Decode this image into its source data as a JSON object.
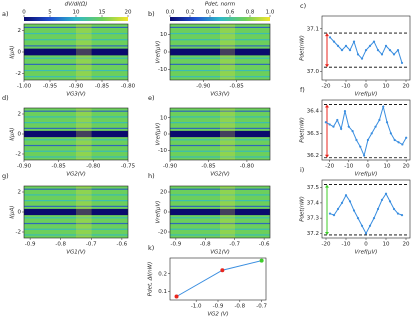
{
  "chart_data": [
    {
      "type": "heatmap",
      "label": "a)",
      "xlabel": "VG3(V)",
      "ylabel": "I(μA)",
      "xlim": [
        -1.0,
        -0.8
      ],
      "xticks": [
        {
          "value": -1.0,
          "label": "-1.00"
        },
        -0.95,
        {
          "value": -0.9,
          "label": "-0.90"
        },
        -0.85,
        {
          "value": -0.8,
          "label": "-0.80"
        }
      ],
      "ylim": [
        -2.6,
        2.6
      ],
      "yticks": [
        -2,
        0,
        2
      ],
      "cbar": {
        "label": "dV/dI(Ω)",
        "lim": [
          0,
          20
        ],
        "ticks": [
          0,
          5,
          10,
          15,
          20
        ]
      },
      "colormap": [
        "#0a0a6e",
        "#1f4fd0",
        "#2fb8c8",
        "#6ccf5c",
        "#f2e52a"
      ]
    },
    {
      "type": "heatmap",
      "label": "b)",
      "xlabel": "VG3(V)",
      "ylabel": "Vref(μV)",
      "xlim": [
        -0.95,
        -0.8
      ],
      "xticks": [
        {
          "value": -0.9,
          "label": "-0.90"
        },
        -0.85
      ],
      "ylim": [
        -16,
        16
      ],
      "yticks": [
        -10,
        0,
        10
      ],
      "cbar": {
        "label": "Pdet, norm",
        "lim": [
          0,
          1
        ],
        "ticks": [
          {
            "value": 0,
            "label": "0.0"
          },
          0.2,
          0.4,
          0.6,
          0.8,
          {
            "value": 1,
            "label": "1.0"
          }
        ]
      },
      "colormap": [
        "#0a0a6e",
        "#1f4fd0",
        "#2fb8c8",
        "#6ccf5c",
        "#f2e52a"
      ]
    },
    {
      "type": "line",
      "label": "c)",
      "xlabel": "Vref(μV)",
      "ylabel": "Pdet(nW)",
      "x": [
        -18,
        -16,
        -14,
        -12,
        -10,
        -8,
        -6,
        -4,
        -2,
        0,
        2,
        4,
        6,
        8,
        10,
        12,
        14,
        16,
        18
      ],
      "values": [
        37.08,
        37.07,
        37.06,
        37.05,
        37.06,
        37.05,
        37.07,
        37.04,
        37.03,
        37.05,
        37.06,
        37.07,
        37.05,
        37.04,
        37.06,
        37.05,
        37.04,
        37.05,
        37.02
      ],
      "color": "#3a8ee0",
      "xlim": [
        -22,
        22
      ],
      "xticks": [
        -20,
        -10,
        0,
        10,
        20
      ],
      "ylim": [
        36.98,
        37.13
      ],
      "yticks": [
        {
          "value": 37,
          "label": "37.0"
        },
        37.1
      ],
      "hlines": [
        37.09,
        37.01
      ],
      "arrow_color": "#e8261e"
    },
    {
      "type": "heatmap",
      "label": "d)",
      "xlabel": "VG2(V)",
      "ylabel": "I(μA)",
      "xlim": [
        -0.9,
        -0.75
      ],
      "xticks": [
        {
          "value": -0.9,
          "label": "-0.90"
        },
        -0.85,
        {
          "value": -0.8,
          "label": "-0.80"
        },
        -0.75
      ],
      "ylim": [
        -2.6,
        2.6
      ],
      "yticks": [
        -2,
        0,
        2
      ],
      "colormap": [
        "#0a0a6e",
        "#1f4fd0",
        "#2fb8c8",
        "#6ccf5c",
        "#f2e52a"
      ]
    },
    {
      "type": "heatmap",
      "label": "e)",
      "xlabel": "VG2(V)",
      "ylabel": "Vref(μV)",
      "xlim": [
        -0.9,
        -0.77
      ],
      "xticks": [
        {
          "value": -0.9,
          "label": "-0.90"
        },
        -0.85,
        {
          "value": -0.8,
          "label": "-0.80"
        }
      ],
      "ylim": [
        -16,
        16
      ],
      "yticks": [
        -10,
        0,
        10
      ],
      "colormap": [
        "#0a0a6e",
        "#1f4fd0",
        "#2fb8c8",
        "#6ccf5c",
        "#f2e52a"
      ]
    },
    {
      "type": "line",
      "label": "f)",
      "xlabel": "Vref(μV)",
      "ylabel": "Pdet(nW)",
      "x": [
        -22,
        -20,
        -18,
        -16,
        -14,
        -12,
        -10,
        -8,
        -6,
        -4,
        -2,
        0,
        2,
        4,
        6,
        8,
        10,
        12,
        14,
        16,
        18,
        20
      ],
      "values": [
        36.35,
        36.34,
        36.33,
        36.36,
        36.32,
        36.4,
        36.33,
        36.31,
        36.27,
        36.24,
        36.2,
        36.27,
        36.3,
        36.33,
        36.36,
        36.42,
        36.35,
        36.3,
        36.27,
        36.26,
        36.25,
        36.28
      ],
      "color": "#3a8ee0",
      "xlim": [
        -24,
        22
      ],
      "xticks": [
        -20,
        -10,
        0,
        10,
        20
      ],
      "ylim": [
        36.18,
        36.45
      ],
      "yticks": [
        36.2,
        36.3,
        36.4
      ],
      "hlines": [
        36.43,
        36.19
      ],
      "arrow_color": "#e8261e"
    },
    {
      "type": "heatmap",
      "label": "g)",
      "xlabel": "VG1(V)",
      "ylabel": "I(μA)",
      "xlim": [
        -0.92,
        -0.58
      ],
      "xticks": [
        -0.9,
        -0.8,
        -0.7,
        -0.6
      ],
      "ylim": [
        -2.6,
        2.6
      ],
      "yticks": [
        -2,
        0,
        2
      ],
      "colormap": [
        "#0a0a6e",
        "#1f4fd0",
        "#2fb8c8",
        "#6ccf5c",
        "#f2e52a"
      ]
    },
    {
      "type": "heatmap",
      "label": "h)",
      "xlabel": "VG1(V)",
      "ylabel": "Vref(μV)",
      "xlim": [
        -0.92,
        -0.58
      ],
      "xticks": [
        -0.9,
        -0.8,
        -0.7,
        -0.6
      ],
      "ylim": [
        -26,
        26
      ],
      "yticks": [
        -20,
        0,
        20
      ],
      "colormap": [
        "#0a0a6e",
        "#1f4fd0",
        "#2fb8c8",
        "#6ccf5c",
        "#f2e52a"
      ]
    },
    {
      "type": "line",
      "label": "i)",
      "xlabel": "Vref(μV)",
      "ylabel": "Pdet(nW)",
      "x": [
        -18,
        -16,
        -14,
        -12,
        -10,
        -8,
        -6,
        -4,
        -2,
        0,
        2,
        4,
        6,
        8,
        10,
        12,
        14,
        16,
        18
      ],
      "values": [
        37.33,
        37.32,
        37.36,
        37.4,
        37.45,
        37.41,
        37.35,
        37.3,
        37.25,
        37.2,
        37.25,
        37.3,
        37.36,
        37.42,
        37.46,
        37.41,
        37.36,
        37.33,
        37.32
      ],
      "color": "#3a8ee0",
      "xlim": [
        -22,
        22
      ],
      "xticks": [
        -20,
        -10,
        0,
        10,
        20
      ],
      "ylim": [
        37.17,
        37.55
      ],
      "yticks": [
        37.2,
        37.3,
        37.4,
        37.5
      ],
      "hlines": [
        37.52,
        37.19
      ],
      "arrow_color": "#3fcc2a"
    },
    {
      "type": "line",
      "label": "k)",
      "xlabel": "VG2 (V)",
      "ylabel": "Pdet, ΔI(nW)",
      "x": [
        -1.09,
        -0.88,
        -0.7
      ],
      "values": [
        0.07,
        0.22,
        0.275
      ],
      "color": "#3a8ee0",
      "point_colors": [
        "#e8261e",
        "#e8261e",
        "#3fcc2a"
      ],
      "xlim": [
        -1.12,
        -0.68
      ],
      "xticks": [
        {
          "value": -1,
          "label": "-1.0"
        },
        -0.9,
        -0.8,
        -0.7
      ],
      "ylim": [
        0.05,
        0.29
      ],
      "yticks": [
        0.1,
        0.2
      ]
    }
  ]
}
